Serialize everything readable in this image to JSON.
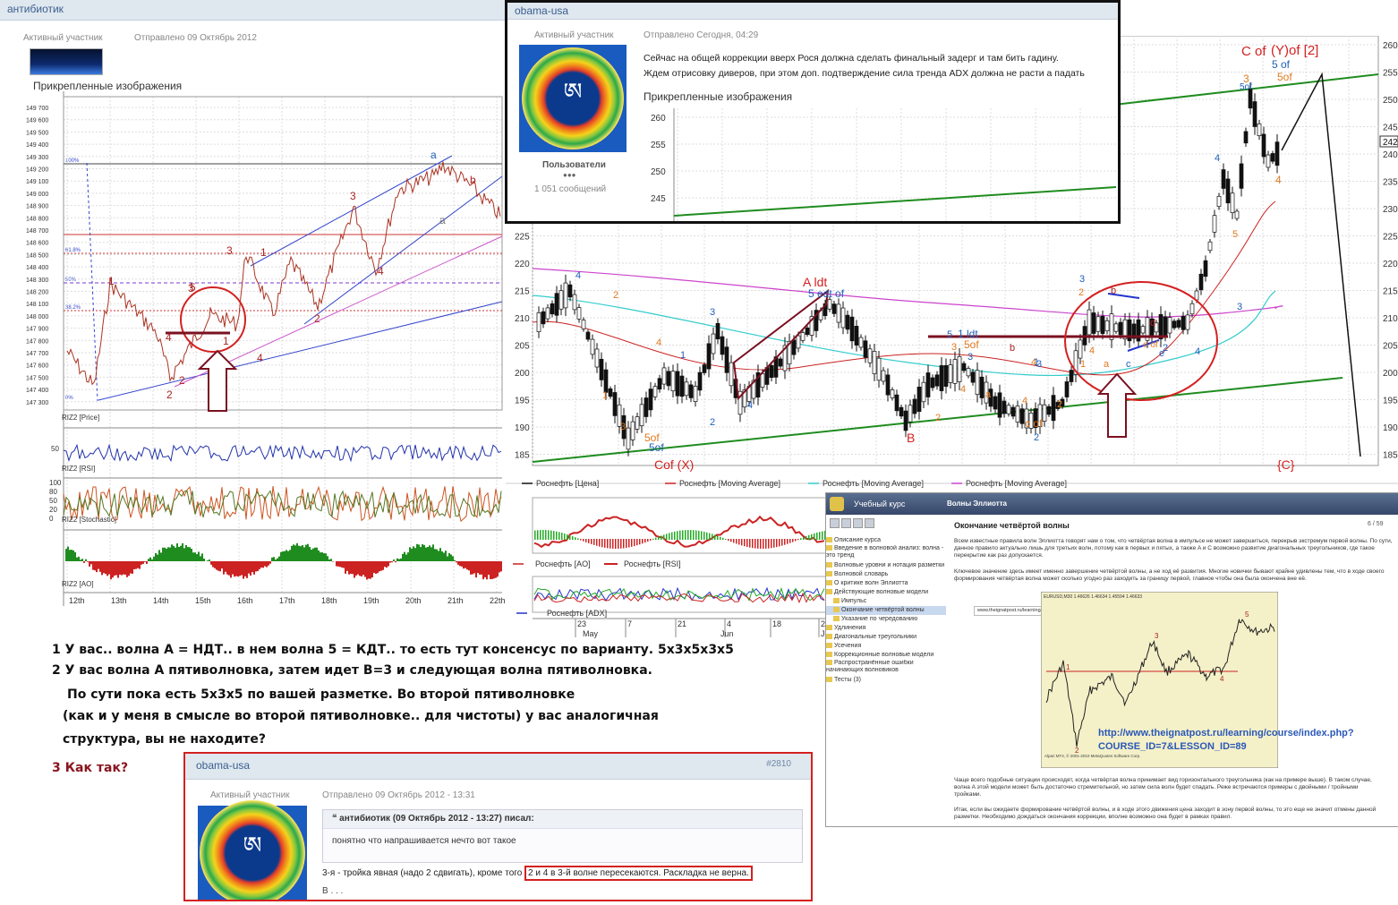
{
  "left_post": {
    "username": "антибиотик",
    "role": "Активный участник",
    "date": "Отправлено 09 Октябрь 2012",
    "attachments_label": "Прикрепленные изображения",
    "price_ticks": [
      "149 700",
      "149 600",
      "149 500",
      "149 400",
      "149 300",
      "149 200",
      "149 100",
      "149 000",
      "148 900",
      "148 800",
      "148 700",
      "148 600",
      "148 500",
      "148 400",
      "148 300",
      "148 200",
      "148 100",
      "148 000",
      "147 900",
      "147 800",
      "147 700",
      "147 600",
      "147 500",
      "147 400",
      "147 300"
    ],
    "fib_labels": [
      "100%",
      "61.8%",
      "50%",
      "38.2%",
      "0%"
    ],
    "wave_labels": [
      "a",
      "b",
      "a",
      "3",
      "3",
      "1",
      "1",
      "3",
      "4",
      "5",
      "1",
      "2",
      "2",
      "4",
      "4",
      "2"
    ],
    "panel_labels": [
      "RIZ2 [Price]",
      "RIZ2 [RSI]",
      "RIZ2 [Stochastic]",
      "RIZ2 [AO]"
    ],
    "rsi_tick": "50",
    "stoch_ticks": [
      "100",
      "80",
      "50",
      "20",
      "0"
    ],
    "date_ticks": [
      "12th",
      "13th",
      "14th",
      "15th",
      "16th",
      "17th",
      "18th",
      "19th",
      "20th",
      "21th",
      "22th"
    ]
  },
  "main_chart": {
    "price_ticks": [
      "260",
      "255",
      "250",
      "245",
      "240",
      "235",
      "230",
      "225",
      "220",
      "215",
      "210",
      "205",
      "200",
      "195",
      "190",
      "185"
    ],
    "current_value": "242",
    "wave_labels": {
      "c_of_y": "C of",
      "y_of_2": "(Y)of [2]",
      "five_of_blue": "5 of",
      "five_of_blue2": "5of",
      "five_of_orange": "5of",
      "three": "3",
      "four": "4",
      "a_ldt": "A ldt",
      "five_edt": "5 edt of",
      "one_ldt": "1 ldt",
      "five_of_b": "5of",
      "b_label": "B",
      "c_of_x": "Cof (X)",
      "five_of_a": "5of",
      "five_of_b2": "5of",
      "c_brace": "{C}",
      "c_of": "c of",
      "e_of": "e of",
      "numbers": [
        "4",
        "2",
        "3",
        "3",
        "1",
        "4",
        "2",
        "1",
        "3",
        "5",
        "4",
        "3",
        "2",
        "4",
        "a",
        "b",
        "4",
        "2",
        "3",
        "4",
        "1",
        "2",
        "3",
        "2",
        "1",
        "4",
        "5",
        "a",
        "b",
        "c",
        "d",
        "e",
        "2",
        "4",
        "3",
        "4"
      ]
    },
    "legend": [
      "Роснефть [Цена]",
      "Роснефть [Moving Average]",
      "Роснефть [Moving Average]",
      "Роснефть [Moving Average]"
    ],
    "ind_legend_1": [
      "Роснефть [AO]",
      "Роснефть [RSI]"
    ],
    "ind_legend_2": "Роснефть [ADX]",
    "date_ticks": [
      "23",
      "7",
      "21",
      "4",
      "18",
      "2"
    ],
    "month_ticks": [
      "May",
      "Jun",
      "Ju"
    ]
  },
  "top_post": {
    "username": "obama-usa",
    "role": "Активный участник",
    "date": "Отправлено Сегодня, 04:29",
    "group": "Пользователи",
    "dots": "●●●",
    "posts": "1 051 сообщений",
    "text1": "Сейчас на общей коррекции вверх Рося должна сделать финальный задерг и там бить гадину.",
    "text2": "Ждем отрисовку диверов, при этом доп. подтверждение сила тренда ADX должна не расти а падать",
    "attachments_label": "Прикрепленные изображения",
    "ticks": [
      "260",
      "255",
      "250",
      "245",
      "240"
    ]
  },
  "course": {
    "app_title": "Учебный курс",
    "header_title": "Волны Эллиотта",
    "page_title": "Окончание четвёртой волны",
    "page_counter": "6 / 59",
    "sidebar": [
      "Описание курса",
      "Введение в волновой анализ: волна - это тренд",
      "Волновые уровни и нотация разметки",
      "Волновой словарь",
      "О критике волн Эллиотта",
      "Действующие волновые модели",
      "Импульс",
      "Окончание четвёртой волны",
      "Указание по чередованию",
      "Удлинения",
      "Диагональные треугольники",
      "Усечения",
      "Коррекционные волновые модели",
      "Распространённые ошибки начинающих волновиков",
      "Тесты (3)"
    ],
    "para1": "Всем известные правила волн Эллиотта говорят нам о том, что четвёртая волна в импульсе не может завершиться, перекрыв экстремум первой волны. По сути, данное правило актуально лишь для третьих волн, потому как в первых и пятых, а также A и C возможно развитие диагональных треугольников, где такое перекрытие как раз допускается.",
    "para2": "Ключевое значение здесь имеет именно завершение четвёртой волны, а не ход её развития. Многие новички бывают крайне удивлены тем, что в ходе своего формирования четвёртая волна может сколько угодно раз заходить за границу первой, главное чтобы она была окончена вне её.",
    "url_bar": "www.theignatpost.ru/learning/course/index.php?COURSE_ID=7&LESSON_ID=89",
    "chart_title": "EURUSD,M30  1.46626 1.46634 1.45594 1.46633",
    "chart_waves": [
      "1",
      "2",
      "3",
      "4",
      "5"
    ],
    "chart_footer": "Alpari MT4, © 2001-2010 MetaQuotes Software Corp.",
    "link_text_1": "http://www.theignatpost.ru/learning/course/index.php?",
    "link_text_2": "COURSE_ID=7&LESSON_ID=89",
    "para3": "Чаще всего подобные ситуации происходят, когда четвёртая волна принимает вид горизонтального треугольника (как на примере выше). В таком случае, волна A этой модели может быть достаточно стремительной, но затем сила волн будет спадать. Реже встречаются примеры с двойными / тройными тройками.",
    "para4": "Итак, если вы ожидаете формирование четвёртой волны, и в ходе этого движения цена заходит в зону первой волны, то это еще не значит отмены данной разметки. Необходимо дождаться окончания коррекции, вполне возможно она будет в рамках правил."
  },
  "comment": {
    "line1": "1 У вас.. волна А = НДТ.. в нем волна 5 = КДТ.. то есть тут консенсус по варианту. 5х3х5х3х5",
    "line2": "2  У вас волна А пятиволновка, затем идет В=3 и следующая волна  пятиволновка.",
    "line3": "По сути пока есть 5х3х5 по вашей разметке. Во второй  пятиволновке",
    "line4": "(как и у меня в смысле во второй пятиволновке.. для чистоты)   у вас аналогичная",
    "line5": "структура, вы не находите?",
    "line6": "3 Как так?"
  },
  "bottom_post": {
    "username": "obama-usa",
    "post_no": "#2810",
    "role": "Активный участник",
    "date": "Отправлено 09 Октябрь 2012 - 13:31",
    "quote_author": "антибиотик (09 Октябрь 2012 - 13:27) писал:",
    "quote_text": "понятно что напрашивается нечто вот такое",
    "reply_pre": "3-я - тройка явная (надо 2 сдвигать), кроме того ",
    "reply_highlight": "2 и 4 в 3-й волне пересекаются. Раскладка не верна.",
    "reply_tail": "В . . ."
  },
  "colors": {
    "forum_header": "#dfe7ef",
    "accent_red": "#cc2222",
    "dark_red": "#7a1020",
    "green_line": "#1f8c1f",
    "blue_wave": "#1f5fb8",
    "orange_wave": "#e07a20"
  }
}
